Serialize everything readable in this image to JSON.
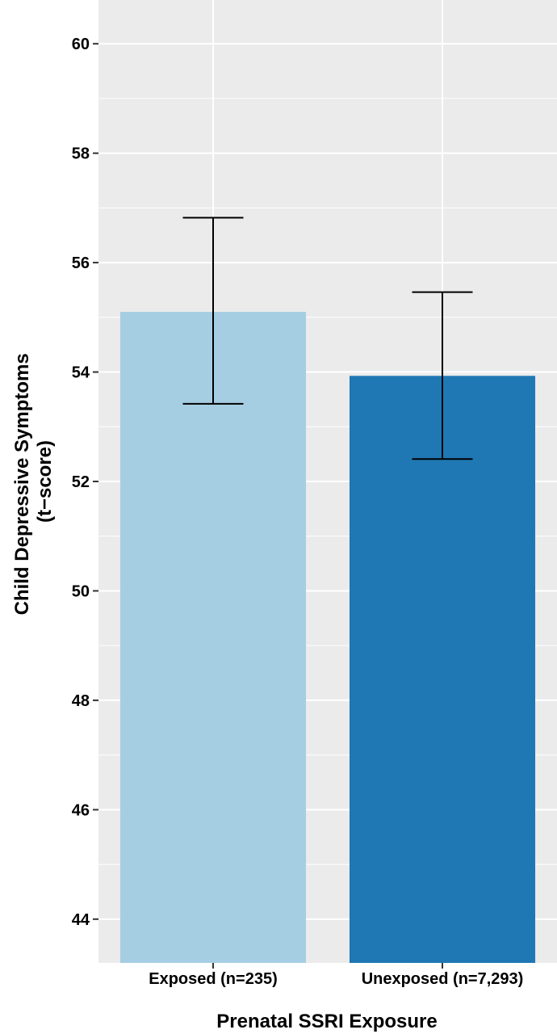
{
  "chart_data": {
    "type": "bar",
    "categories": [
      "Exposed (n=235)",
      "Unexposed (n=7,293)"
    ],
    "values": [
      55.1,
      53.93
    ],
    "error_bars": [
      {
        "low": 53.42,
        "high": 56.82
      },
      {
        "low": 52.41,
        "high": 55.46
      }
    ],
    "colors": [
      "#a6cee3",
      "#1f78b4"
    ],
    "title": "",
    "xlabel": "Prenatal SSRI Exposure",
    "ylabel_lines": [
      "Child Depressive Symptoms",
      "(t−score)"
    ],
    "yticks": [
      "44",
      "46",
      "48",
      "50",
      "52",
      "54",
      "56",
      "58",
      "60"
    ],
    "ylim": [
      43.2,
      60.8
    ],
    "grid": true,
    "panel_background": "#ebebeb",
    "grid_color": "#ffffff"
  }
}
